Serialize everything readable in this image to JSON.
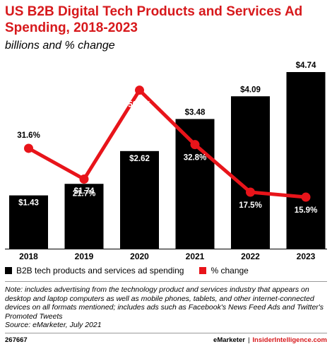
{
  "title": "US B2B Digital Tech Products and Services Ad Spending, 2018-2023",
  "subtitle": "billions and % change",
  "colors": {
    "accent": "#d7191c",
    "bar": "#000000",
    "line": "#e8141a"
  },
  "chart_data": {
    "type": "bar",
    "categories": [
      "2018",
      "2019",
      "2020",
      "2021",
      "2022",
      "2023"
    ],
    "series": [
      {
        "name": "B2B tech products and services ad spending",
        "type": "bar",
        "values": [
          1.43,
          1.74,
          2.62,
          3.48,
          4.09,
          4.74
        ],
        "labels": [
          "$1.43",
          "$1.74",
          "$2.62",
          "$3.48",
          "$4.09",
          "$4.74"
        ]
      },
      {
        "name": "% change",
        "type": "line",
        "values": [
          31.6,
          21.7,
          50.3,
          32.8,
          17.5,
          15.9
        ],
        "labels": [
          "31.6%",
          "21.7%",
          "50.3%",
          "32.8%",
          "17.5%",
          "15.9%"
        ]
      }
    ],
    "ylim_bar": [
      0,
      4.74
    ],
    "ylim_line": [
      0,
      60
    ],
    "grid": false,
    "legend_position": "bottom-left"
  },
  "legend": {
    "bars": "B2B tech products and services ad spending",
    "line": "% change"
  },
  "note": "Note: includes advertising from the technology product and services industry that appears on desktop and laptop computers as well as mobile phones, tablets, and other internet-connected devices on all formats mentioned; includes ads such as Facebook's News Feed Ads and Twitter's Promoted Tweets",
  "source": "Source: eMarketer, July 2021",
  "footer": {
    "code": "267667",
    "brand_left": "eMarketer",
    "separator": "|",
    "brand_right": "InsiderIntelligence.com"
  }
}
